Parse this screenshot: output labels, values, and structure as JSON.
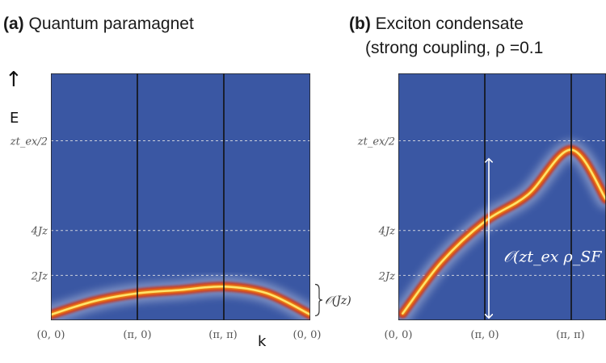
{
  "chart_data": [
    {
      "type": "heatmap",
      "panel": "(a)",
      "title": "Quantum paramagnet",
      "ylabel": "E",
      "xlabel": "k",
      "x_ticks": [
        "(0, 0)",
        "(π, 0)",
        "(π, π)",
        "(0, 0)"
      ],
      "y_ticks": [
        {
          "label": "2Jz",
          "value": 2
        },
        {
          "label": "4Jz",
          "value": 4
        },
        {
          "label": "zt_ex/2",
          "value": 8
        }
      ],
      "ylim": [
        0,
        11
      ],
      "grid": "dashed horizontal at y ticks",
      "dispersion": {
        "x": [
          0,
          0.5,
          1,
          1.5,
          2,
          2.5,
          3
        ],
        "y": [
          0.25,
          0.85,
          1.2,
          1.35,
          1.5,
          1.2,
          0.25
        ]
      },
      "annotation": "𝒪(Jz)"
    },
    {
      "type": "heatmap",
      "panel": "(b)",
      "title": "Exciton condensate",
      "subtitle": "(strong coupling, ρ =0.1",
      "x_ticks": [
        "(0, 0)",
        "(π, 0)",
        "(π, π)"
      ],
      "y_ticks": [
        {
          "label": "2Jz",
          "value": 2
        },
        {
          "label": "4Jz",
          "value": 4
        },
        {
          "label": "zt_ex/2",
          "value": 8
        }
      ],
      "ylim": [
        0,
        11
      ],
      "grid": "dashed horizontal at y ticks",
      "dispersion": {
        "x": [
          0.05,
          0.5,
          1,
          1.5,
          2,
          2.4
        ],
        "y": [
          0.3,
          2.6,
          4.4,
          5.6,
          7.6,
          5.4
        ]
      },
      "annotation": "𝒪(zt_ex ρ_SF"
    }
  ],
  "colors": {
    "background": "#3a57a3",
    "band_edge": "#cc1a10",
    "band_core": "#ffe36a",
    "grid": "#e6e6e6"
  }
}
